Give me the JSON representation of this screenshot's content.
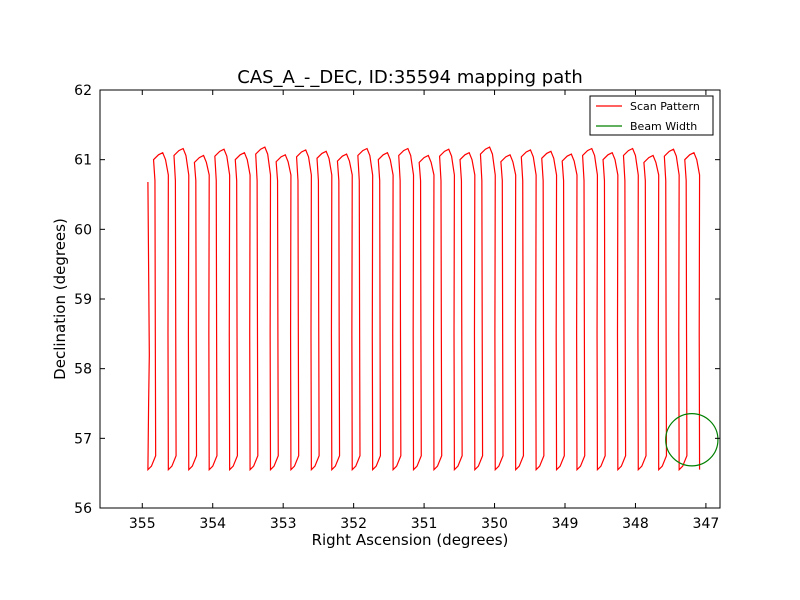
{
  "chart_data": {
    "type": "line",
    "title": "CAS_A_-_DEC, ID:35594 mapping path",
    "xlabel": "Right Ascension (degrees)",
    "ylabel": "Declination (degrees)",
    "xlim": [
      355.6,
      346.8
    ],
    "ylim": [
      56,
      62
    ],
    "xticks": [
      355,
      354,
      353,
      352,
      351,
      350,
      349,
      348,
      347
    ],
    "yticks": [
      56,
      57,
      58,
      59,
      60,
      61,
      62
    ],
    "grid": false,
    "legend_position": "top-right",
    "series": [
      {
        "name": "Scan Pattern",
        "color": "#ff0000",
        "scan_start": {
          "ra": 354.92,
          "dec": 60.68
        },
        "scan_count": 27,
        "ra_step_per_scan": 0.305,
        "dec_bottom": 56.55,
        "dec_top": 61.05
      },
      {
        "name": "Beam Width",
        "color": "#008000",
        "center": {
          "ra": 347.2,
          "dec": 56.98
        },
        "radius_deg": 0.375
      }
    ]
  }
}
